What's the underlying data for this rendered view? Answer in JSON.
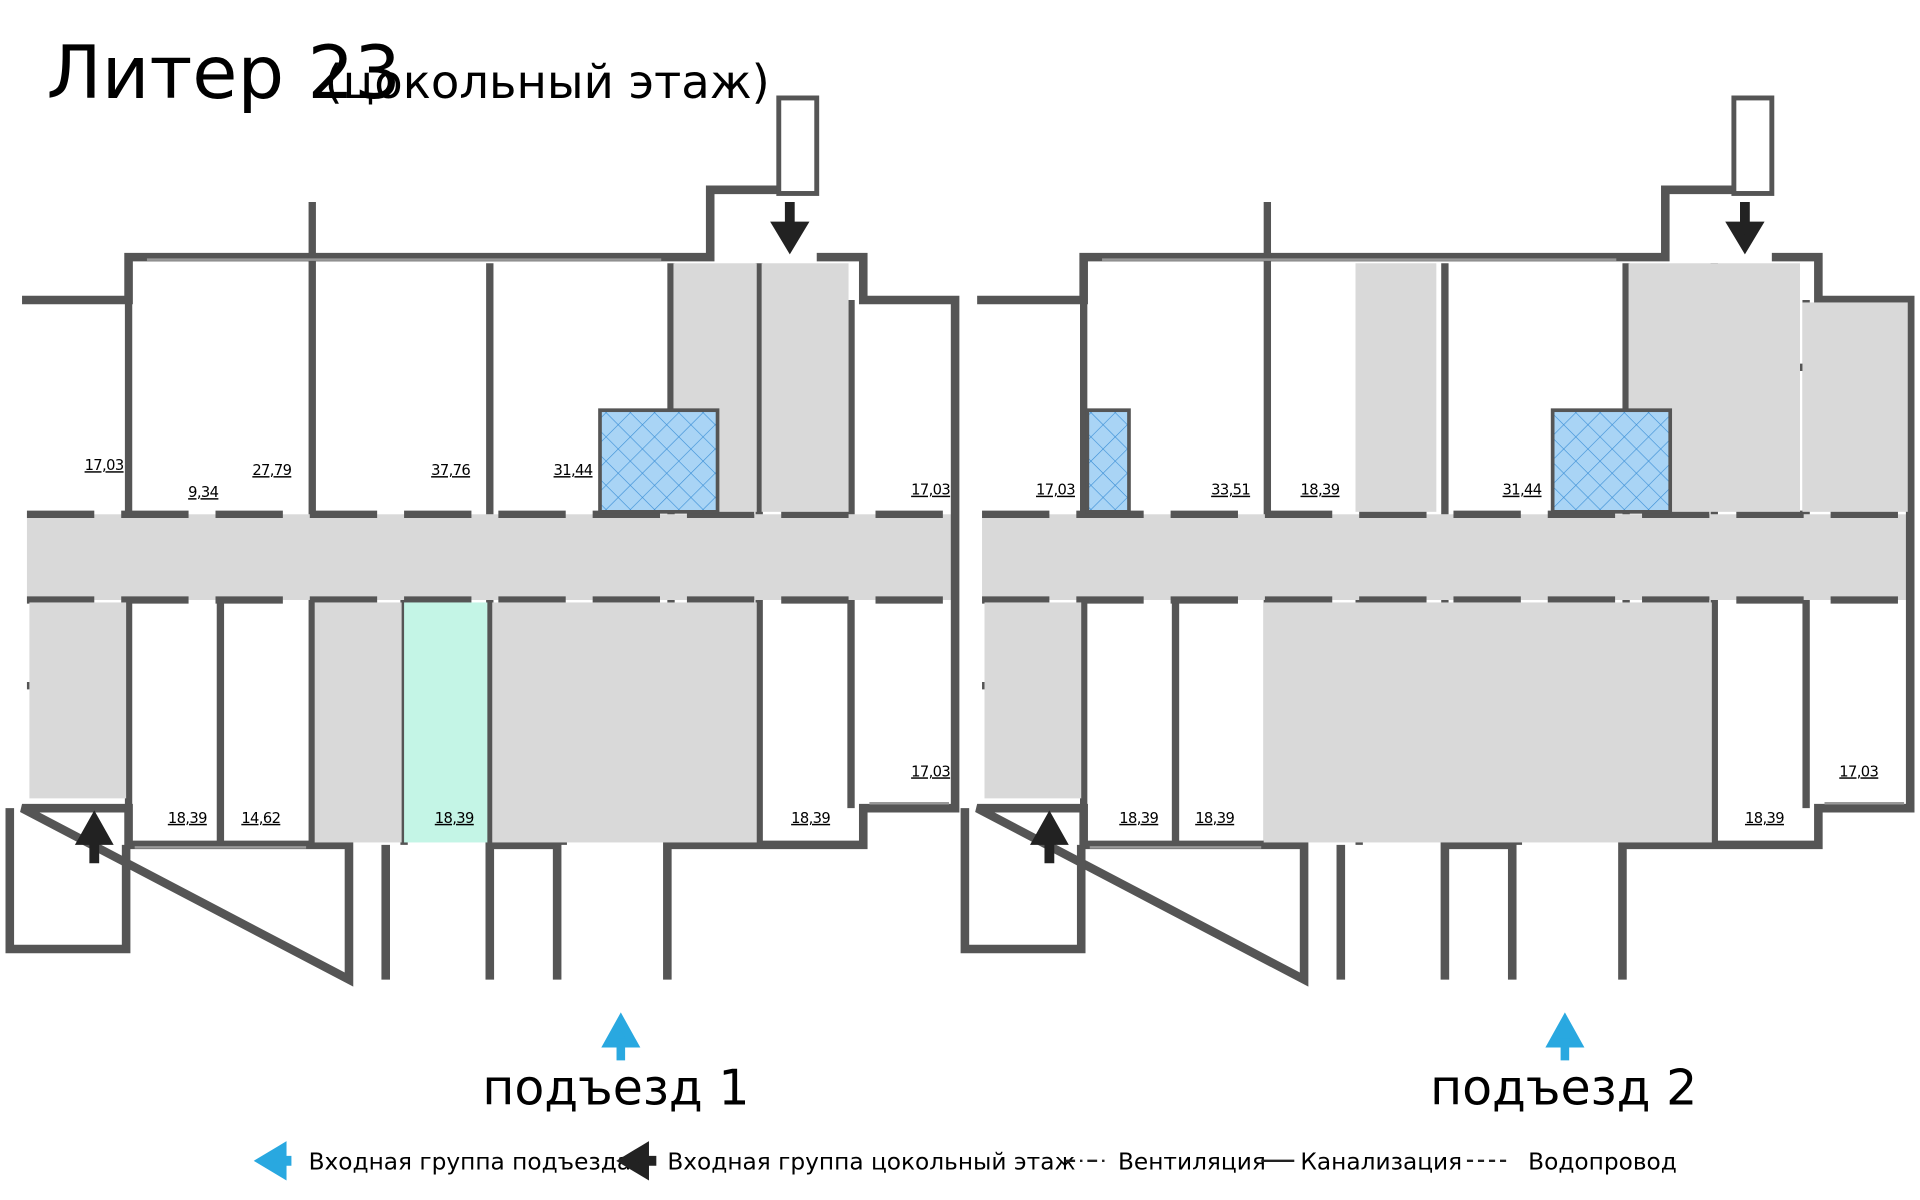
{
  "header": {
    "title": "Литер 23",
    "subtitle": "(цокольный этаж)"
  },
  "rooms": [
    "17,03",
    "9,34",
    "27,79",
    "37,76",
    "31,44",
    "17,03",
    "18,39",
    "14,62",
    "18,39",
    "18,39",
    "17,03",
    "17,03",
    "33,51",
    "18,39",
    "31,44",
    "18,39",
    "18,39",
    "17,03",
    "18,39"
  ],
  "entrances": [
    "подъезд 1",
    "подъезд 2"
  ],
  "legend": [
    "Входная группа подъезда",
    "Входная группа цокольный этаж",
    "Вентиляция",
    "Канализация",
    "Водопровод"
  ]
}
